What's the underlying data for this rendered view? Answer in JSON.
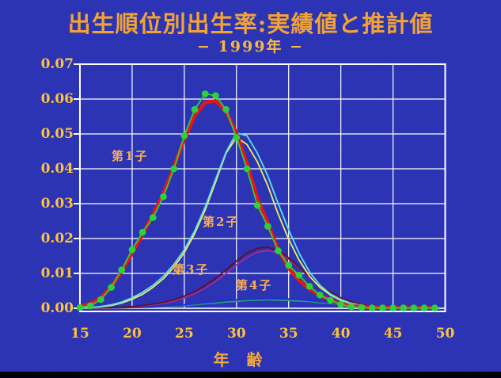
{
  "title": "出生順位別出生率:実績値と推計値",
  "subtitle": "− 1999年 −",
  "colors": {
    "background": "#2b33b2",
    "grid": "#ffffff",
    "title_text": "#f2a336",
    "tick_text": "#fdc43b",
    "label_text": "#f7ae52",
    "first_actual": "#2bd23a",
    "first_estimate": "#ee1212",
    "second_actual": "#5fdff2",
    "second_estimate": "#efef5e",
    "third_actual": "#5e1222",
    "third_estimate": "#a32a9e",
    "fourth_actual": "#1c2fd2",
    "fourth_estimate": "#2f9a78"
  },
  "chart_data": {
    "type": "line",
    "title": "出生順位別出生率:実績値と推計値",
    "subtitle": "− 1999年 −",
    "xlabel": "年　齢",
    "ylabel": "",
    "xlim": [
      15,
      50
    ],
    "ylim": [
      0.0,
      0.07
    ],
    "grid": true,
    "x_tick_labels": [
      "15",
      "20",
      "25",
      "30",
      "35",
      "40",
      "45",
      "50"
    ],
    "y_tick_labels": [
      "0.00",
      "0.01",
      "0.02",
      "0.03",
      "0.04",
      "0.05",
      "0.06",
      "0.07"
    ],
    "series_labels": [
      "第1子",
      "第2子",
      "第3子",
      "第4子"
    ],
    "x": [
      15,
      16,
      17,
      18,
      19,
      20,
      21,
      22,
      23,
      24,
      25,
      26,
      27,
      28,
      29,
      30,
      31,
      32,
      33,
      34,
      35,
      36,
      37,
      38,
      39,
      40,
      41,
      42,
      43,
      44,
      45,
      46,
      47,
      48,
      49
    ],
    "series": [
      {
        "name": "第1子（実績値）",
        "color": "#2bd23a",
        "style": "dots+line",
        "values": [
          0.0002,
          0.0007,
          0.0025,
          0.006,
          0.011,
          0.0168,
          0.0218,
          0.026,
          0.032,
          0.04,
          0.0495,
          0.057,
          0.0615,
          0.061,
          0.057,
          0.049,
          0.04,
          0.0295,
          0.0235,
          0.0165,
          0.0123,
          0.0095,
          0.0063,
          0.0038,
          0.0023,
          0.0011,
          0.0004,
          0.0002,
          0.0001,
          0.0001,
          0.0001,
          0.0001,
          0.0001,
          0.0001,
          0.0001
        ]
      },
      {
        "name": "第1子（推計値）",
        "color": "#ee1212",
        "style": "thick",
        "values": [
          0.0005,
          0.0013,
          0.003,
          0.0062,
          0.0105,
          0.0158,
          0.0212,
          0.0268,
          0.033,
          0.0405,
          0.0485,
          0.0552,
          0.059,
          0.0595,
          0.0565,
          0.0502,
          0.0415,
          0.0315,
          0.0245,
          0.0168,
          0.0115,
          0.008,
          0.0055,
          0.0037,
          0.0023,
          0.0013,
          0.0007,
          0.0004,
          0.0002,
          0.0002,
          0.0001,
          0.0001,
          0.0001,
          0.0001,
          0.0001
        ]
      },
      {
        "name": "第2子（実績値）",
        "color": "#5fdff2",
        "style": "line",
        "values": [
          0.0001,
          0.0002,
          0.0005,
          0.001,
          0.0018,
          0.003,
          0.0046,
          0.0066,
          0.0092,
          0.0126,
          0.0168,
          0.0222,
          0.029,
          0.037,
          0.0448,
          0.0503,
          0.0495,
          0.0445,
          0.038,
          0.03,
          0.0225,
          0.0158,
          0.0104,
          0.0066,
          0.0041,
          0.0025,
          0.0014,
          0.0008,
          0.0004,
          0.0002,
          0.0002,
          0.0001,
          0.0001,
          0.0001,
          0.0001
        ]
      },
      {
        "name": "第2子（推計値）",
        "color": "#efef5e",
        "style": "line",
        "values": [
          0.0001,
          0.0002,
          0.0004,
          0.0008,
          0.0015,
          0.0026,
          0.004,
          0.006,
          0.0085,
          0.0118,
          0.016,
          0.0214,
          0.0282,
          0.0362,
          0.0445,
          0.049,
          0.047,
          0.042,
          0.0352,
          0.027,
          0.0198,
          0.0138,
          0.0092,
          0.006,
          0.0038,
          0.0023,
          0.0013,
          0.0007,
          0.0004,
          0.0002,
          0.0001,
          0.0001,
          0.0001,
          0.0001,
          0.0001
        ]
      },
      {
        "name": "第3子（実績値）",
        "color": "#5e1222",
        "style": "line",
        "values": [
          0.0001,
          0.0001,
          0.0001,
          0.0002,
          0.0003,
          0.0005,
          0.0008,
          0.0012,
          0.0017,
          0.0024,
          0.0035,
          0.0048,
          0.0065,
          0.0086,
          0.011,
          0.0136,
          0.0158,
          0.0172,
          0.0175,
          0.0166,
          0.0145,
          0.0118,
          0.009,
          0.0066,
          0.0046,
          0.003,
          0.0019,
          0.0011,
          0.0006,
          0.0004,
          0.0002,
          0.0001,
          0.0001,
          0.0001,
          0.0001
        ]
      },
      {
        "name": "第3子（推計値）",
        "color": "#a32a9e",
        "style": "line",
        "values": [
          0.0001,
          0.0001,
          0.0001,
          0.0001,
          0.0002,
          0.0004,
          0.0006,
          0.001,
          0.0014,
          0.002,
          0.003,
          0.0042,
          0.0058,
          0.0077,
          0.0099,
          0.0124,
          0.0146,
          0.0161,
          0.0166,
          0.0159,
          0.0141,
          0.0116,
          0.0089,
          0.0065,
          0.0045,
          0.003,
          0.0019,
          0.0012,
          0.0007,
          0.0004,
          0.0002,
          0.0001,
          0.0001,
          0.0001,
          0.0001
        ]
      },
      {
        "name": "第4子（実績値）",
        "color": "#1c2fd2",
        "style": "line",
        "values": [
          0.0001,
          0.0001,
          0.0001,
          0.0001,
          0.0002,
          0.0002,
          0.0003,
          0.0004,
          0.0006,
          0.0008,
          0.001,
          0.0013,
          0.0016,
          0.0019,
          0.0022,
          0.0024,
          0.0026,
          0.0027,
          0.0028,
          0.0028,
          0.0027,
          0.0025,
          0.0022,
          0.0019,
          0.0016,
          0.0012,
          0.0009,
          0.0007,
          0.0005,
          0.0003,
          0.0002,
          0.0002,
          0.0001,
          0.0001,
          0.0001
        ]
      },
      {
        "name": "第4子（推計値）",
        "color": "#2f9a78",
        "style": "line",
        "values": [
          0.0001,
          0.0001,
          0.0001,
          0.0001,
          0.0001,
          0.0002,
          0.0002,
          0.0003,
          0.0004,
          0.0006,
          0.0008,
          0.001,
          0.0013,
          0.0015,
          0.0018,
          0.002,
          0.0022,
          0.0023,
          0.0024,
          0.0023,
          0.0022,
          0.0021,
          0.0019,
          0.0016,
          0.0014,
          0.0011,
          0.0009,
          0.0006,
          0.0004,
          0.0003,
          0.0002,
          0.0002,
          0.0001,
          0.0001,
          0.0001
        ]
      }
    ]
  }
}
